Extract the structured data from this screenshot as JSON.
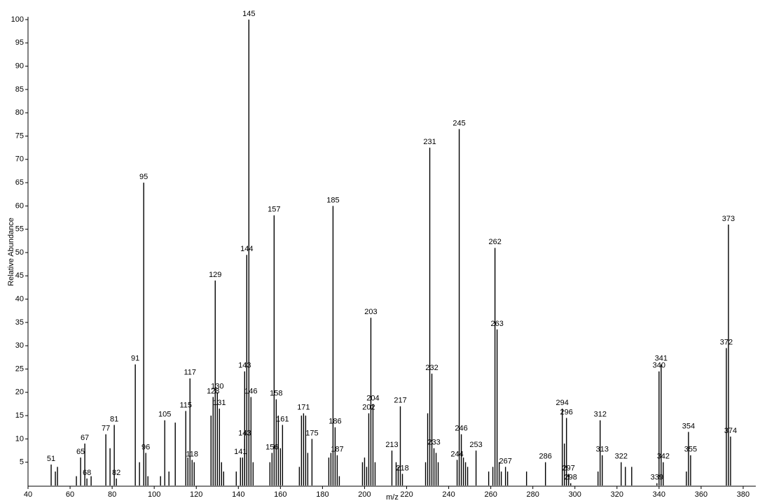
{
  "chart_data": {
    "type": "bar",
    "x_label": "m/z",
    "y_label": "Relative Abundance",
    "xlim": [
      40,
      386
    ],
    "ylim": [
      0,
      100
    ],
    "xticks": [
      40,
      60,
      80,
      100,
      120,
      140,
      160,
      180,
      200,
      220,
      240,
      260,
      280,
      300,
      320,
      340,
      360,
      380
    ],
    "yticks": [
      5,
      10,
      15,
      20,
      25,
      30,
      35,
      40,
      45,
      50,
      55,
      60,
      65,
      70,
      75,
      80,
      85,
      90,
      95,
      100
    ],
    "color": "#000000",
    "peaks": {
      "x": [
        51,
        65,
        67,
        68,
        77,
        81,
        82,
        91,
        95,
        96,
        105,
        115,
        117,
        118,
        128,
        129,
        130,
        131,
        141,
        143,
        143,
        144,
        145,
        146,
        156,
        157,
        158,
        161,
        171,
        175,
        185,
        186,
        187,
        202,
        203,
        204,
        213,
        217,
        218,
        231,
        232,
        233,
        244,
        245,
        246,
        253,
        262,
        263,
        267,
        286,
        294,
        296,
        297,
        298,
        312,
        313,
        322,
        339,
        340,
        341,
        342,
        354,
        355,
        372,
        373,
        374
      ],
      "values": [
        4.5,
        6,
        9,
        1.5,
        11,
        13,
        1.5,
        26,
        65,
        7,
        14,
        16,
        23,
        5.5,
        19,
        44,
        20,
        16.5,
        6,
        10,
        24.5,
        49.5,
        100,
        19,
        7,
        58,
        18.5,
        13,
        15.5,
        10,
        60,
        12.5,
        6.5,
        15.5,
        36,
        17.5,
        7.5,
        17,
        2.5,
        72.5,
        24,
        8,
        5.5,
        76.5,
        11,
        7.5,
        51,
        33.5,
        4,
        5,
        16.5,
        14.5,
        2.5,
        0.5,
        14,
        6.5,
        5,
        0.5,
        24.5,
        26,
        5,
        11.5,
        6.5,
        29.5,
        56,
        10.5
      ]
    },
    "minor_peaks": {
      "x": [
        53,
        54,
        63,
        70,
        79,
        93,
        97,
        103,
        107,
        110,
        116,
        119,
        127,
        132,
        133,
        139,
        142,
        147,
        155,
        159,
        160,
        169,
        170,
        172,
        173,
        183,
        184,
        188,
        199,
        200,
        201,
        205,
        215,
        216,
        229,
        230,
        234,
        235,
        247,
        248,
        249,
        259,
        261,
        264,
        265,
        268,
        277,
        295,
        311,
        324,
        327,
        353
      ],
      "values": [
        3,
        4,
        2,
        2,
        8,
        5,
        2,
        2,
        3,
        13.5,
        6,
        5,
        15,
        5,
        3,
        3,
        6,
        5,
        5,
        15,
        8,
        4,
        15,
        15,
        7,
        6,
        7,
        2,
        5,
        6,
        4,
        5,
        5,
        4,
        5,
        15.5,
        7,
        5,
        6,
        5,
        4,
        3,
        4,
        5,
        3,
        3,
        3,
        9,
        3,
        4,
        4,
        3
      ]
    }
  }
}
